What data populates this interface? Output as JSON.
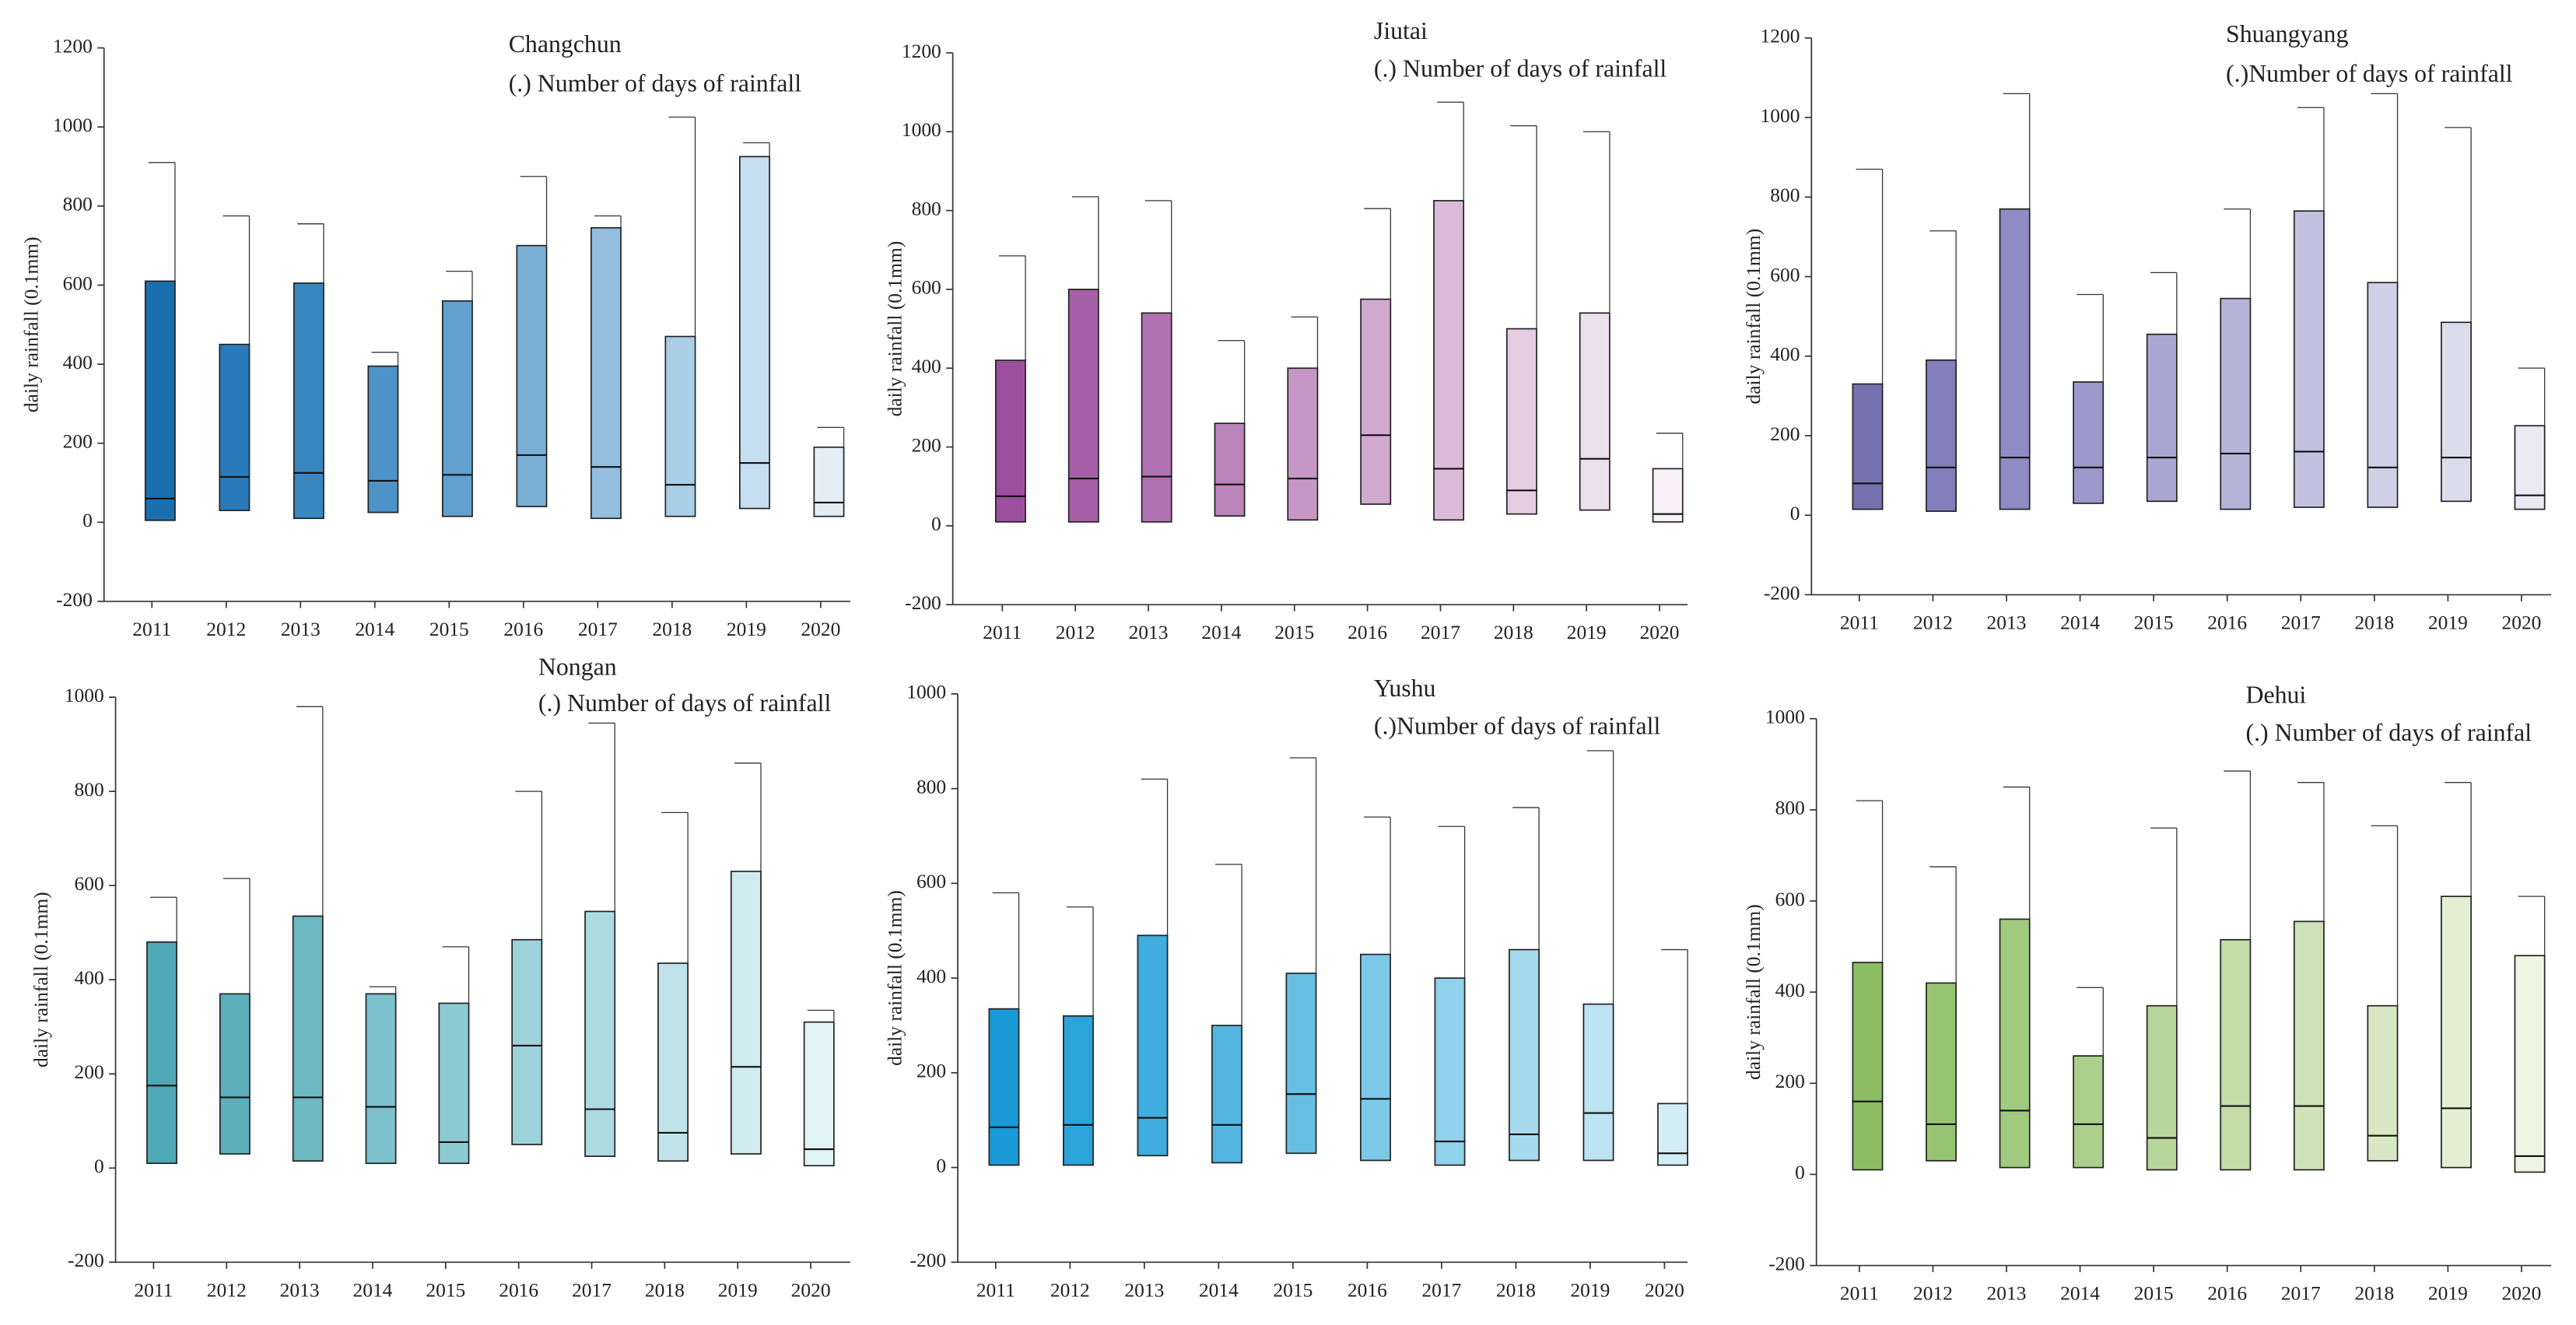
{
  "chart_data": [
    {
      "type": "box",
      "title": "Changchun",
      "subtitle": "(.) Number of days of rainfall",
      "ylabel": "daily rainfall (0.1mm)",
      "categories": [
        "2011",
        "2012",
        "2013",
        "2014",
        "2015",
        "2016",
        "2017",
        "2018",
        "2019",
        "2020"
      ],
      "q1": [
        5,
        30,
        10,
        25,
        15,
        40,
        10,
        15,
        35,
        15
      ],
      "median": [
        60,
        115,
        125,
        105,
        120,
        170,
        140,
        95,
        150,
        50
      ],
      "q3": [
        610,
        450,
        605,
        395,
        560,
        700,
        745,
        470,
        925,
        190
      ],
      "whisker_high": [
        910,
        775,
        755,
        430,
        635,
        875,
        775,
        1025,
        960,
        240
      ],
      "colors": [
        "#1a6fae",
        "#2b7bba",
        "#3a86c0",
        "#4d93c8",
        "#62a0cf",
        "#7aafd6",
        "#92bfdf",
        "#abcee7",
        "#c6dff0",
        "#e3eef7"
      ],
      "ylim": [
        -200,
        1200
      ],
      "yticks": [
        -200,
        0,
        200,
        400,
        600,
        800,
        1000,
        1200
      ]
    },
    {
      "type": "box",
      "title": "Jiutai",
      "subtitle": "(.) Number of days of rainfall",
      "ylabel": "daily rainfall (0.1mm)",
      "categories": [
        "2011",
        "2012",
        "2013",
        "2014",
        "2015",
        "2016",
        "2017",
        "2018",
        "2019",
        "2020"
      ],
      "q1": [
        10,
        10,
        10,
        25,
        15,
        55,
        15,
        30,
        40,
        10
      ],
      "median": [
        75,
        120,
        125,
        105,
        120,
        230,
        145,
        90,
        170,
        30
      ],
      "q3": [
        420,
        600,
        540,
        260,
        400,
        575,
        825,
        500,
        540,
        145
      ],
      "whisker_high": [
        685,
        835,
        825,
        470,
        530,
        805,
        1075,
        1015,
        1000,
        235
      ],
      "colors": [
        "#9b4f9e",
        "#a560a7",
        "#b072b1",
        "#bb84bb",
        "#c696c5",
        "#d1a9cf",
        "#dbbbd9",
        "#e5cde3",
        "#eedfec",
        "#f7f0f6"
      ],
      "ylim": [
        -200,
        1200
      ],
      "yticks": [
        -200,
        0,
        200,
        400,
        600,
        800,
        1000,
        1200
      ]
    },
    {
      "type": "box",
      "title": "Shuangyang",
      "subtitle": "(.)Number of days of rainfall",
      "ylabel": "daily rainfall (0.1mm)",
      "categories": [
        "2011",
        "2012",
        "2013",
        "2014",
        "2015",
        "2016",
        "2017",
        "2018",
        "2019",
        "2020"
      ],
      "q1": [
        15,
        10,
        15,
        30,
        35,
        15,
        20,
        20,
        35,
        15
      ],
      "median": [
        80,
        120,
        145,
        120,
        145,
        155,
        160,
        120,
        145,
        50
      ],
      "q3": [
        330,
        390,
        770,
        335,
        455,
        545,
        765,
        585,
        485,
        225
      ],
      "whisker_high": [
        870,
        715,
        1060,
        555,
        610,
        770,
        1025,
        1060,
        975,
        370
      ],
      "colors": [
        "#7672b0",
        "#827ebb",
        "#8f8bc3",
        "#9c98ca",
        "#a9a6d1",
        "#b6b3d8",
        "#c3c1df",
        "#d0cfe6",
        "#dddced",
        "#ebeaf4"
      ],
      "ylim": [
        -200,
        1200
      ],
      "yticks": [
        -200,
        0,
        200,
        400,
        600,
        800,
        1000,
        1200
      ]
    },
    {
      "type": "box",
      "title": "Nongan",
      "subtitle": "(.)  Number of days of rainfall",
      "ylabel": "daily rainfall (0.1mm)",
      "categories": [
        "2011",
        "2012",
        "2013",
        "2014",
        "2015",
        "2016",
        "2017",
        "2018",
        "2019",
        "2020"
      ],
      "q1": [
        10,
        30,
        15,
        10,
        10,
        50,
        25,
        15,
        30,
        5
      ],
      "median": [
        175,
        150,
        150,
        130,
        55,
        260,
        125,
        75,
        215,
        40
      ],
      "q3": [
        480,
        370,
        535,
        370,
        350,
        485,
        545,
        435,
        630,
        310
      ],
      "whisker_high": [
        575,
        615,
        980,
        385,
        470,
        800,
        945,
        755,
        860,
        335
      ],
      "colors": [
        "#4ea7b4",
        "#5dafbc",
        "#6cb8c3",
        "#7cc1cb",
        "#8ccad2",
        "#9dd2da",
        "#aedbe1",
        "#bfe3e8",
        "#d0ebef",
        "#e2f3f5"
      ],
      "ylim": [
        -200,
        1000
      ],
      "yticks": [
        -200,
        0,
        200,
        400,
        600,
        800,
        1000
      ]
    },
    {
      "type": "box",
      "title": "Yushu",
      "subtitle": "(.)Number of days of rainfall",
      "ylabel": "daily rainfall (0.1mm)",
      "categories": [
        "2011",
        "2012",
        "2013",
        "2014",
        "2015",
        "2016",
        "2017",
        "2018",
        "2019",
        "2020"
      ],
      "q1": [
        5,
        5,
        25,
        10,
        30,
        15,
        5,
        15,
        15,
        5
      ],
      "median": [
        85,
        90,
        105,
        90,
        155,
        145,
        55,
        70,
        115,
        30
      ],
      "q3": [
        335,
        320,
        490,
        300,
        410,
        450,
        400,
        460,
        345,
        135
      ],
      "whisker_high": [
        580,
        550,
        820,
        640,
        865,
        740,
        720,
        760,
        880,
        460
      ],
      "colors": [
        "#1a9ad6",
        "#2ca3da",
        "#3faddd",
        "#53b6e1",
        "#67bfe4",
        "#7cc8e8",
        "#90d1eb",
        "#a6daef",
        "#bce4f3",
        "#d3edf7"
      ],
      "ylim": [
        -200,
        1000
      ],
      "yticks": [
        -200,
        0,
        200,
        400,
        600,
        800,
        1000
      ]
    },
    {
      "type": "box",
      "title": "Dehui",
      "subtitle": "(.) Number of days of rainfal",
      "ylabel": "daily rainfall (0.1mm)",
      "categories": [
        "2011",
        "2012",
        "2013",
        "2014",
        "2015",
        "2016",
        "2017",
        "2018",
        "2019",
        "2020"
      ],
      "q1": [
        10,
        30,
        15,
        15,
        10,
        10,
        10,
        30,
        15,
        5
      ],
      "median": [
        160,
        110,
        140,
        110,
        80,
        150,
        150,
        85,
        145,
        40
      ],
      "q3": [
        465,
        420,
        560,
        260,
        370,
        515,
        555,
        370,
        610,
        480
      ],
      "whisker_high": [
        820,
        675,
        850,
        410,
        760,
        885,
        860,
        765,
        860,
        610
      ],
      "colors": [
        "#8cbd63",
        "#97c470",
        "#a2ca7e",
        "#adcf8c",
        "#b8d69a",
        "#c3dca8",
        "#cde2b6",
        "#d8e8c4",
        "#e3efd3",
        "#eef5e3"
      ],
      "ylim": [
        -200,
        1000
      ],
      "yticks": [
        -200,
        0,
        200,
        400,
        600,
        800,
        1000
      ]
    }
  ]
}
